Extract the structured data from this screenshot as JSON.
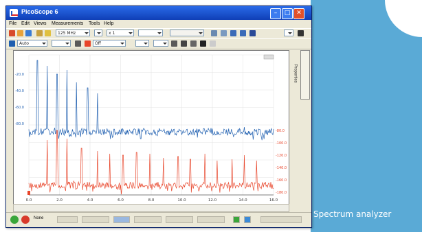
{
  "caption": "Spectrum analyzer",
  "window": {
    "title": "PicoScope 6"
  },
  "menu": [
    "File",
    "Edit",
    "Views",
    "Measurements",
    "Tools",
    "Help"
  ],
  "toolbar": {
    "timebase_value": "125 MHz",
    "samples_value": "x 1",
    "channel_a_value": "Auto",
    "channel_b_value": "Off"
  },
  "statusbar": {
    "trigger_value": "None"
  },
  "plot": {
    "x_ticks": [
      "0.0",
      "2.0",
      "4.0",
      "6.0",
      "8.0",
      "10.0",
      "12.0",
      "14.0",
      "16.0"
    ],
    "y_left_ticks": [
      "-20.0",
      "-40.0",
      "-60.0",
      "-80.0"
    ],
    "y_right_ticks": [
      "-80.0",
      "-100.0",
      "-120.0",
      "-140.0",
      "-160.0",
      "-180.0"
    ],
    "channel_a_color": "#1f5fb0",
    "channel_b_color": "#e8452a"
  },
  "colors": {
    "panel_blue": "#5aaad6",
    "titlebar_blue": "#0f3fb6"
  },
  "icons": [
    "app-icon",
    "minimize-icon",
    "maximize-icon",
    "close-icon",
    "run-icon",
    "stop-icon"
  ]
}
